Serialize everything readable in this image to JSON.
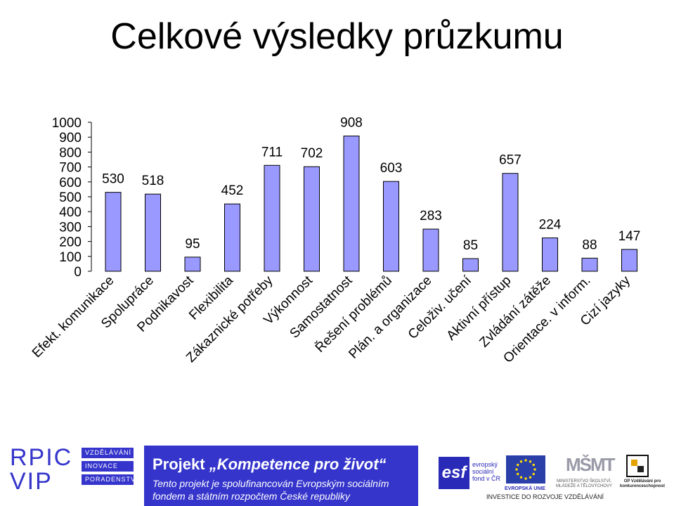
{
  "title": "Celkové výsledky průzkumu",
  "chart_data": {
    "type": "bar",
    "title": "",
    "xlabel": "",
    "ylabel": "",
    "ylim": [
      0,
      1000
    ],
    "yticks": [
      0,
      100,
      200,
      300,
      400,
      500,
      600,
      700,
      800,
      900,
      1000
    ],
    "grid": false,
    "legend": "none",
    "bar_color": "#9999ff",
    "categories": [
      "Efekt. komunikace",
      "Spolupráce",
      "Podnikavost",
      "Flexibilita",
      "Zákaznické potřeby",
      "Výkonnost",
      "Samostatnost",
      "Řešení problémů",
      "Plán. a organizace",
      "Celoživ. učení",
      "Aktivní přístup",
      "Zvládání zátěže",
      "Orientace. v inform.",
      "Cizí jazyky"
    ],
    "values": [
      530,
      518,
      95,
      452,
      711,
      702,
      908,
      603,
      283,
      85,
      657,
      224,
      88,
      147
    ]
  },
  "footer": {
    "project_prefix": "Projekt",
    "project_name": "„Kompetence pro život“",
    "line1": "Tento projekt je spolufinancován Evropským  sociálním",
    "line2": "fondem a státním rozpočtem České republiky"
  },
  "logos": {
    "rpic_line1": "RPIC",
    "rpic_line2": "VIP",
    "rpic_tags": [
      "VZDĚLÁVÁNÍ",
      "INOVACE",
      "PORADENSTVÍ"
    ],
    "esf_mark": "esf",
    "esf_text": [
      "evropský",
      "sociální",
      "fond v ČR"
    ],
    "eu_text": "EVROPSKÁ UNIE",
    "msmt_mark": "MŠMT",
    "msmt_text": "MINISTERSTVO ŠKOLSTVÍ, MLÁDEŽE A TĚLOVÝCHOVY",
    "op_text": "OP Vzdělávání pro konkurenceschopnost",
    "invest_text": "INVESTICE DO ROZVOJE VZDĚLÁVÁNÍ"
  }
}
